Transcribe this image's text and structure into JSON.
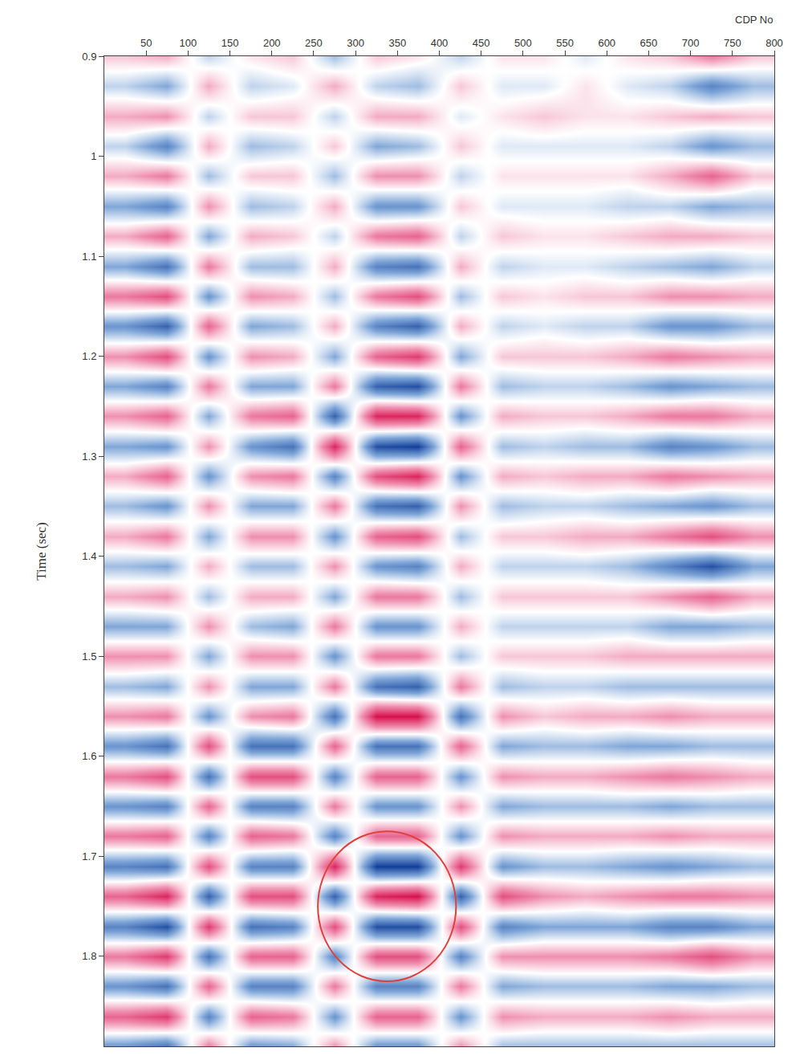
{
  "chart_data": {
    "type": "heatmap",
    "xlabel": "CDP No",
    "ylabel": "Time (sec)",
    "x": [
      25,
      75,
      125,
      175,
      225,
      275,
      325,
      375,
      425,
      475,
      525,
      575,
      625,
      675,
      725,
      775
    ],
    "y": [
      0.9,
      0.93,
      0.96,
      0.99,
      1.02,
      1.05,
      1.08,
      1.11,
      1.14,
      1.17,
      1.2,
      1.23,
      1.26,
      1.29,
      1.32,
      1.35,
      1.38,
      1.41,
      1.44,
      1.47,
      1.5,
      1.53,
      1.56,
      1.59,
      1.62,
      1.65,
      1.68,
      1.71,
      1.74,
      1.77,
      1.8,
      1.83,
      1.86,
      1.89
    ],
    "z": [
      [
        0.2,
        0.3,
        -0.2,
        0.1,
        0.2,
        -0.3,
        0.2,
        0.1,
        -0.2,
        0.1,
        0.1,
        -0.1,
        0.1,
        0.2,
        0.5,
        0.2
      ],
      [
        -0.2,
        -0.4,
        0.3,
        -0.2,
        -0.1,
        0.3,
        -0.2,
        -0.3,
        0.2,
        -0.1,
        -0.1,
        0.1,
        -0.1,
        -0.2,
        -0.6,
        -0.3
      ],
      [
        0.3,
        0.4,
        -0.2,
        0.2,
        0.2,
        -0.2,
        0.3,
        0.3,
        -0.1,
        0.1,
        0.2,
        0.1,
        0.1,
        0.2,
        0.3,
        0.2
      ],
      [
        -0.2,
        -0.6,
        0.3,
        -0.3,
        -0.2,
        0.2,
        -0.4,
        -0.3,
        0.2,
        -0.1,
        -0.1,
        -0.1,
        -0.1,
        -0.2,
        -0.5,
        -0.3
      ],
      [
        0.3,
        0.5,
        -0.3,
        0.2,
        0.2,
        -0.3,
        0.4,
        0.4,
        -0.2,
        0.1,
        0.1,
        0.1,
        0.1,
        0.3,
        0.6,
        0.2
      ],
      [
        -0.4,
        -0.6,
        0.4,
        -0.3,
        -0.2,
        0.3,
        -0.5,
        -0.5,
        0.2,
        -0.1,
        -0.1,
        -0.1,
        -0.2,
        -0.2,
        -0.4,
        -0.3
      ],
      [
        0.3,
        0.6,
        -0.4,
        0.3,
        0.2,
        -0.2,
        0.5,
        0.6,
        -0.2,
        0.2,
        0.1,
        0.1,
        0.2,
        0.3,
        0.3,
        0.2
      ],
      [
        -0.4,
        -0.7,
        0.5,
        -0.3,
        -0.3,
        0.3,
        -0.6,
        -0.7,
        0.3,
        -0.2,
        -0.1,
        -0.1,
        -0.2,
        -0.3,
        -0.4,
        -0.2
      ],
      [
        0.5,
        0.7,
        -0.5,
        0.4,
        0.3,
        -0.3,
        0.5,
        0.7,
        -0.3,
        0.2,
        0.1,
        0.2,
        0.2,
        0.4,
        0.4,
        0.3
      ],
      [
        -0.5,
        -0.8,
        0.6,
        -0.4,
        -0.3,
        0.3,
        -0.6,
        -0.8,
        0.3,
        -0.2,
        -0.1,
        -0.2,
        -0.2,
        -0.5,
        -0.5,
        -0.3
      ],
      [
        0.4,
        0.7,
        -0.5,
        0.4,
        0.3,
        -0.4,
        0.6,
        0.8,
        -0.4,
        0.2,
        0.2,
        0.2,
        0.3,
        0.5,
        0.4,
        0.3
      ],
      [
        -0.4,
        -0.6,
        0.5,
        -0.4,
        -0.4,
        0.5,
        -0.8,
        -0.9,
        0.5,
        -0.3,
        -0.2,
        -0.2,
        -0.3,
        -0.5,
        -0.4,
        -0.3
      ],
      [
        0.4,
        0.6,
        -0.4,
        0.5,
        0.6,
        -0.8,
        0.9,
        0.9,
        -0.5,
        0.3,
        0.2,
        0.2,
        0.3,
        0.5,
        0.5,
        0.3
      ],
      [
        -0.4,
        -0.5,
        0.4,
        -0.5,
        -0.7,
        0.9,
        -0.9,
        -1.0,
        0.6,
        -0.3,
        -0.2,
        -0.3,
        -0.3,
        -0.6,
        -0.5,
        -0.3
      ],
      [
        0.3,
        0.6,
        -0.5,
        0.4,
        0.5,
        -0.6,
        0.7,
        0.9,
        -0.5,
        0.3,
        0.2,
        0.3,
        0.3,
        0.5,
        0.4,
        0.3
      ],
      [
        -0.3,
        -0.5,
        0.4,
        -0.4,
        -0.4,
        0.5,
        -0.7,
        -0.8,
        0.4,
        -0.3,
        -0.2,
        -0.2,
        -0.3,
        -0.4,
        -0.5,
        -0.3
      ],
      [
        0.3,
        0.5,
        -0.4,
        0.4,
        0.4,
        -0.5,
        0.6,
        0.7,
        -0.3,
        0.2,
        0.2,
        0.3,
        0.3,
        0.5,
        0.7,
        0.4
      ],
      [
        -0.3,
        -0.4,
        0.3,
        -0.3,
        -0.3,
        0.4,
        -0.5,
        -0.6,
        0.3,
        -0.2,
        -0.2,
        -0.2,
        -0.3,
        -0.6,
        -0.9,
        -0.4
      ],
      [
        0.3,
        0.4,
        -0.3,
        0.3,
        0.3,
        -0.4,
        0.5,
        0.5,
        -0.3,
        0.2,
        0.2,
        0.2,
        0.2,
        0.4,
        0.6,
        0.3
      ],
      [
        -0.4,
        -0.4,
        0.4,
        -0.3,
        -0.4,
        0.5,
        -0.5,
        -0.5,
        0.3,
        -0.2,
        -0.2,
        -0.2,
        -0.2,
        -0.4,
        -0.4,
        -0.3
      ],
      [
        0.4,
        0.4,
        -0.4,
        0.4,
        0.4,
        -0.5,
        0.5,
        0.5,
        -0.3,
        0.2,
        0.2,
        0.2,
        0.3,
        0.3,
        0.3,
        0.3
      ],
      [
        -0.3,
        -0.4,
        0.4,
        -0.4,
        -0.4,
        0.5,
        -0.7,
        -0.8,
        0.5,
        -0.3,
        -0.2,
        -0.2,
        -0.3,
        -0.3,
        -0.3,
        -0.3
      ],
      [
        0.4,
        0.5,
        -0.5,
        0.4,
        0.5,
        -0.7,
        1.0,
        1.0,
        -0.7,
        0.4,
        0.2,
        0.3,
        0.3,
        0.4,
        0.3,
        0.3
      ],
      [
        -0.5,
        -0.7,
        0.7,
        -0.7,
        -0.7,
        0.6,
        -0.7,
        -0.7,
        0.6,
        -0.4,
        -0.3,
        -0.3,
        -0.4,
        -0.4,
        -0.3,
        -0.3
      ],
      [
        0.5,
        0.7,
        -0.7,
        0.7,
        0.7,
        -0.6,
        0.6,
        0.6,
        -0.5,
        0.4,
        0.3,
        0.3,
        0.4,
        0.5,
        0.4,
        0.3
      ],
      [
        -0.5,
        -0.6,
        0.6,
        -0.6,
        -0.6,
        0.5,
        -0.5,
        -0.5,
        0.4,
        -0.4,
        -0.3,
        -0.3,
        -0.3,
        -0.4,
        -0.3,
        -0.3
      ],
      [
        0.5,
        0.6,
        -0.6,
        0.6,
        0.5,
        -0.6,
        0.6,
        0.6,
        -0.5,
        0.4,
        0.3,
        0.3,
        0.3,
        0.4,
        0.3,
        0.3
      ],
      [
        -0.6,
        -0.7,
        0.7,
        -0.6,
        -0.6,
        0.9,
        -1.0,
        -1.0,
        0.8,
        -0.5,
        -0.3,
        -0.3,
        -0.4,
        -0.5,
        -0.4,
        -0.3
      ],
      [
        0.6,
        0.9,
        -0.8,
        0.7,
        0.7,
        -0.8,
        0.9,
        1.0,
        -0.8,
        0.7,
        0.4,
        0.3,
        0.4,
        0.5,
        0.5,
        0.4
      ],
      [
        -0.6,
        -0.9,
        0.8,
        -0.7,
        -0.6,
        0.7,
        -0.9,
        -0.9,
        0.7,
        -0.6,
        -0.4,
        -0.4,
        -0.4,
        -0.6,
        -0.6,
        -0.4
      ],
      [
        0.5,
        0.8,
        -0.7,
        0.6,
        0.6,
        -0.6,
        0.7,
        0.7,
        -0.6,
        0.4,
        0.4,
        0.4,
        0.4,
        0.5,
        0.7,
        0.4
      ],
      [
        -0.5,
        -0.7,
        0.6,
        -0.6,
        -0.6,
        0.5,
        -0.6,
        -0.6,
        0.5,
        -0.4,
        -0.3,
        -0.3,
        -0.3,
        -0.4,
        -0.4,
        -0.3
      ],
      [
        0.6,
        0.8,
        -0.6,
        0.6,
        0.5,
        -0.5,
        0.6,
        0.6,
        -0.5,
        0.4,
        0.3,
        0.3,
        0.3,
        0.4,
        0.3,
        0.3
      ],
      [
        -0.5,
        -0.7,
        0.5,
        -0.5,
        -0.4,
        0.4,
        -0.5,
        -0.5,
        0.4,
        -0.3,
        -0.3,
        -0.3,
        -0.3,
        -0.3,
        -0.3,
        -0.3
      ]
    ],
    "zlim": [
      -1,
      1
    ],
    "xlim": [
      0,
      800
    ],
    "xticks": [
      50,
      100,
      150,
      200,
      250,
      300,
      350,
      400,
      450,
      500,
      550,
      600,
      650,
      700,
      750,
      800
    ],
    "ylim": [
      0.9,
      1.89
    ],
    "yticks": [
      0.9,
      1,
      1.1,
      1.2,
      1.3,
      1.4,
      1.5,
      1.6,
      1.7,
      1.8
    ],
    "grid": false,
    "ellipse": {
      "x": [
        255,
        420
      ],
      "y": [
        1.675,
        1.825
      ],
      "color": "#e0403a"
    }
  }
}
